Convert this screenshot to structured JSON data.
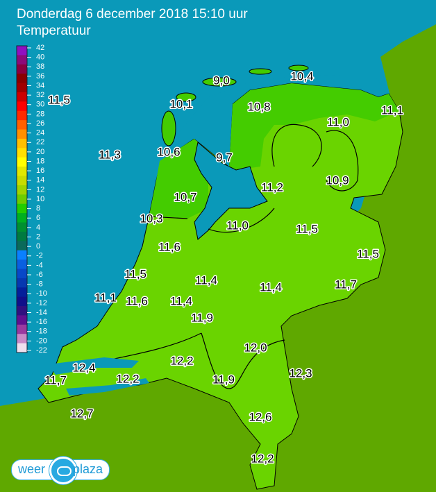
{
  "header": {
    "title": "Donderdag 6 december 2018 15:10 uur",
    "subtitle": "Temperatuur"
  },
  "legend": {
    "ticks": [
      "42",
      "40",
      "38",
      "36",
      "34",
      "32",
      "30",
      "28",
      "26",
      "24",
      "22",
      "20",
      "18",
      "16",
      "14",
      "12",
      "10",
      "8",
      "6",
      "4",
      "2",
      "0",
      "-2",
      "-4",
      "-6",
      "-8",
      "-10",
      "-12",
      "-14",
      "-16",
      "-18",
      "-20",
      "-22"
    ],
    "colors": [
      "#9010c0",
      "#8c0a7a",
      "#8a0040",
      "#8a0000",
      "#a00000",
      "#cc0000",
      "#ff0000",
      "#ff2a00",
      "#ff6000",
      "#ff9000",
      "#ffc000",
      "#ffe000",
      "#ffff00",
      "#e0e800",
      "#c8dc00",
      "#9fd400",
      "#6ccc00",
      "#22cc00",
      "#00b020",
      "#009030",
      "#007a40",
      "#0a6a5a",
      "#0a80ff",
      "#0a60e0",
      "#0848c8",
      "#0638b0",
      "#04209a",
      "#10108a",
      "#301080",
      "#601090",
      "#9a3aa0",
      "#c88ac8",
      "#eee0ee"
    ]
  },
  "colors": {
    "sea": "#0a99b9",
    "foreign_land": "#5fa800",
    "land_warm": "#6ad400",
    "land_cool": "#44cc00"
  },
  "readings": [
    "11,5",
    "11,3",
    "10,1",
    "9,0",
    "10,4",
    "10,8",
    "11,1",
    "11,0",
    "10,6",
    "9,7",
    "11,2",
    "10,9",
    "10,7",
    "10,3",
    "11,0",
    "11,5",
    "11,6",
    "11,5",
    "11,5",
    "11,4",
    "11,4",
    "11,7",
    "11,1",
    "11,6",
    "11,4",
    "11,9",
    "12,0",
    "12,2",
    "12,4",
    "12,3",
    "11,7",
    "12,2",
    "11,9",
    "12,7",
    "12,6",
    "12,2"
  ],
  "logo": {
    "left": "weer",
    "right": "plaza"
  }
}
